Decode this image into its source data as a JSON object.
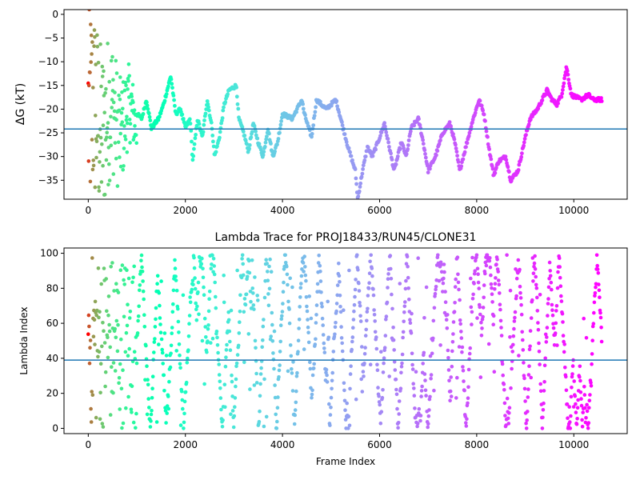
{
  "chart_data": [
    {
      "type": "scatter",
      "title": "",
      "xlabel": "",
      "ylabel": "ΔG (kT)",
      "xlim": [
        -500,
        11100
      ],
      "ylim": [
        -39,
        1
      ],
      "xticks": [
        0,
        2000,
        4000,
        6000,
        8000,
        10000
      ],
      "yticks": [
        0,
        -5,
        -10,
        -15,
        -20,
        -25,
        -30,
        -35
      ],
      "hline": -24.2,
      "hline_color": "#1f77b4",
      "colormap": "rainbow",
      "grid": false,
      "total_frames": 10580,
      "trace_keypoints": [
        [
          1000,
          -21
        ],
        [
          1100,
          -22
        ],
        [
          1200,
          -18
        ],
        [
          1300,
          -24
        ],
        [
          1450,
          -22
        ],
        [
          1550,
          -19
        ],
        [
          1650,
          -15
        ],
        [
          1700,
          -13
        ],
        [
          1800,
          -21
        ],
        [
          1900,
          -20
        ],
        [
          2000,
          -24
        ],
        [
          2100,
          -22
        ],
        [
          2150,
          -31
        ],
        [
          2250,
          -22
        ],
        [
          2350,
          -26
        ],
        [
          2450,
          -18
        ],
        [
          2550,
          -24
        ],
        [
          2600,
          -30
        ],
        [
          2700,
          -26
        ],
        [
          2800,
          -19
        ],
        [
          2900,
          -16
        ],
        [
          3050,
          -15
        ],
        [
          3100,
          -22
        ],
        [
          3200,
          -25
        ],
        [
          3300,
          -29
        ],
        [
          3400,
          -23
        ],
        [
          3500,
          -27
        ],
        [
          3600,
          -30
        ],
        [
          3700,
          -24
        ],
        [
          3800,
          -30
        ],
        [
          3900,
          -27
        ],
        [
          4000,
          -21
        ],
        [
          4200,
          -22
        ],
        [
          4400,
          -18
        ],
        [
          4450,
          -21
        ],
        [
          4600,
          -26
        ],
        [
          4700,
          -18
        ],
        [
          4900,
          -20
        ],
        [
          5100,
          -18
        ],
        [
          5200,
          -22
        ],
        [
          5350,
          -28
        ],
        [
          5500,
          -33
        ],
        [
          5550,
          -39
        ],
        [
          5650,
          -33
        ],
        [
          5750,
          -28
        ],
        [
          5850,
          -30
        ],
        [
          6000,
          -26
        ],
        [
          6100,
          -23
        ],
        [
          6200,
          -28
        ],
        [
          6300,
          -33
        ],
        [
          6450,
          -27
        ],
        [
          6550,
          -30
        ],
        [
          6650,
          -24
        ],
        [
          6800,
          -22
        ],
        [
          6900,
          -27
        ],
        [
          7000,
          -33
        ],
        [
          7150,
          -30
        ],
        [
          7300,
          -25
        ],
        [
          7450,
          -23
        ],
        [
          7550,
          -27
        ],
        [
          7650,
          -33
        ],
        [
          7750,
          -29
        ],
        [
          7900,
          -23
        ],
        [
          8050,
          -18
        ],
        [
          8150,
          -21
        ],
        [
          8250,
          -28
        ],
        [
          8350,
          -34
        ],
        [
          8450,
          -31
        ],
        [
          8600,
          -30
        ],
        [
          8700,
          -35
        ],
        [
          8850,
          -33
        ],
        [
          9000,
          -26
        ],
        [
          9100,
          -22
        ],
        [
          9250,
          -20
        ],
        [
          9450,
          -16
        ],
        [
          9550,
          -18
        ],
        [
          9650,
          -19
        ],
        [
          9750,
          -17
        ],
        [
          9850,
          -11
        ],
        [
          9950,
          -17
        ],
        [
          10150,
          -18
        ],
        [
          10300,
          -17
        ],
        [
          10400,
          -18
        ],
        [
          10580,
          -18
        ]
      ]
    },
    {
      "type": "scatter",
      "title": "Lambda Trace for PROJ18433/RUN45/CLONE31",
      "xlabel": "Frame Index",
      "ylabel": "Lambda Index",
      "xlim": [
        -500,
        11100
      ],
      "ylim": [
        -3,
        103
      ],
      "xticks": [
        0,
        2000,
        4000,
        6000,
        8000,
        10000
      ],
      "yticks": [
        0,
        20,
        40,
        60,
        80,
        100
      ],
      "hline": 39,
      "hline_color": "#1f77b4",
      "colormap": "rainbow",
      "grid": false,
      "total_frames": 10580
    }
  ]
}
